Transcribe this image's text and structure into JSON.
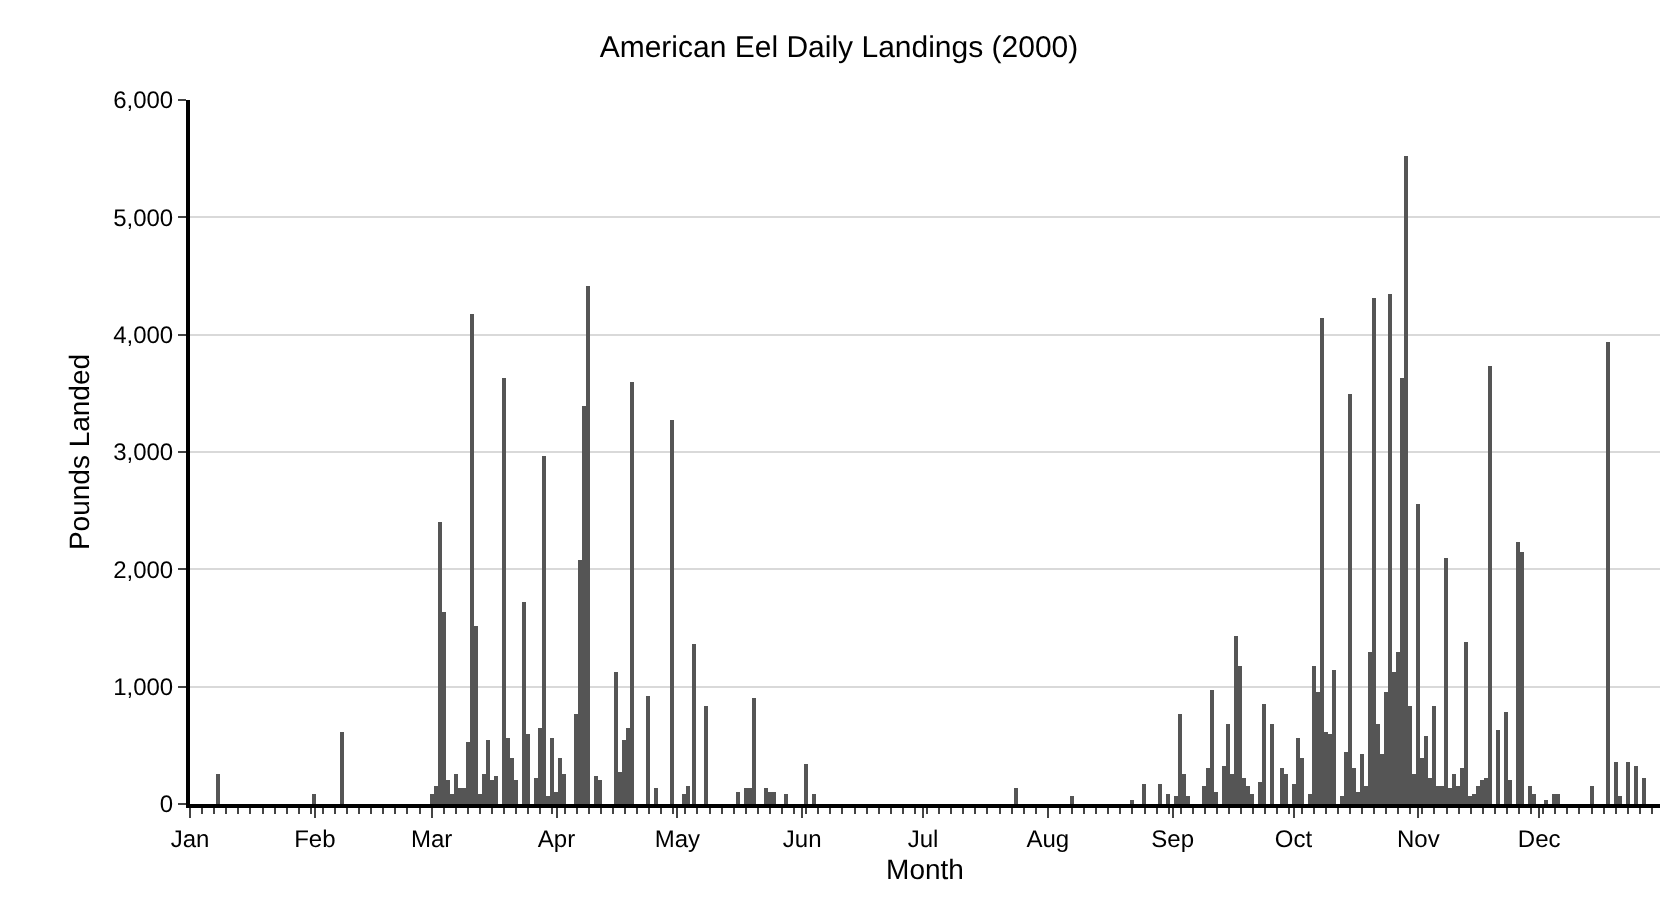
{
  "chart_data": {
    "type": "bar",
    "title": "American Eel Daily Landings (2000)",
    "xlabel": "Month",
    "ylabel": "Pounds Landed",
    "x": [
      "2000-01-08",
      "2000-02-01",
      "2000-02-08",
      "2000-03-01",
      "2000-03-02",
      "2000-03-03",
      "2000-03-04",
      "2000-03-05",
      "2000-03-06",
      "2000-03-07",
      "2000-03-08",
      "2000-03-09",
      "2000-03-10",
      "2000-03-11",
      "2000-03-12",
      "2000-03-13",
      "2000-03-14",
      "2000-03-15",
      "2000-03-16",
      "2000-03-17",
      "2000-03-19",
      "2000-03-20",
      "2000-03-21",
      "2000-03-22",
      "2000-03-24",
      "2000-03-25",
      "2000-03-27",
      "2000-03-28",
      "2000-03-29",
      "2000-03-30",
      "2000-03-31",
      "2000-04-01",
      "2000-04-02",
      "2000-04-03",
      "2000-04-06",
      "2000-04-07",
      "2000-04-08",
      "2000-04-09",
      "2000-04-11",
      "2000-04-12",
      "2000-04-16",
      "2000-04-17",
      "2000-04-18",
      "2000-04-19",
      "2000-04-20",
      "2000-04-24",
      "2000-04-26",
      "2000-04-30",
      "2000-05-03",
      "2000-05-04",
      "2000-05-05",
      "2000-05-08",
      "2000-05-16",
      "2000-05-18",
      "2000-05-19",
      "2000-05-20",
      "2000-05-23",
      "2000-05-24",
      "2000-05-25",
      "2000-05-28",
      "2000-06-02",
      "2000-06-04",
      "2000-07-24",
      "2000-08-07",
      "2000-08-22",
      "2000-08-25",
      "2000-08-29",
      "2000-08-31",
      "2000-09-02",
      "2000-09-03",
      "2000-09-04",
      "2000-09-05",
      "2000-09-09",
      "2000-09-10",
      "2000-09-11",
      "2000-09-12",
      "2000-09-14",
      "2000-09-15",
      "2000-09-16",
      "2000-09-17",
      "2000-09-18",
      "2000-09-19",
      "2000-09-20",
      "2000-09-21",
      "2000-09-23",
      "2000-09-24",
      "2000-09-26",
      "2000-09-28",
      "2000-09-29",
      "2000-10-01",
      "2000-10-02",
      "2000-10-03",
      "2000-10-05",
      "2000-10-06",
      "2000-10-07",
      "2000-10-08",
      "2000-10-09",
      "2000-10-10",
      "2000-10-11",
      "2000-10-13",
      "2000-10-14",
      "2000-10-15",
      "2000-10-16",
      "2000-10-17",
      "2000-10-18",
      "2000-10-19",
      "2000-10-20",
      "2000-10-21",
      "2000-10-22",
      "2000-10-23",
      "2000-10-24",
      "2000-10-25",
      "2000-10-26",
      "2000-10-27",
      "2000-10-28",
      "2000-10-29",
      "2000-10-30",
      "2000-10-31",
      "2000-11-01",
      "2000-11-02",
      "2000-11-03",
      "2000-11-04",
      "2000-11-05",
      "2000-11-06",
      "2000-11-07",
      "2000-11-08",
      "2000-11-09",
      "2000-11-10",
      "2000-11-11",
      "2000-11-12",
      "2000-11-13",
      "2000-11-14",
      "2000-11-15",
      "2000-11-16",
      "2000-11-17",
      "2000-11-18",
      "2000-11-19",
      "2000-11-21",
      "2000-11-23",
      "2000-11-24",
      "2000-11-26",
      "2000-11-27",
      "2000-11-29",
      "2000-11-30",
      "2000-12-03",
      "2000-12-05",
      "2000-12-06",
      "2000-12-14",
      "2000-12-18",
      "2000-12-20",
      "2000-12-21",
      "2000-12-23",
      "2000-12-25",
      "2000-12-27"
    ],
    "values": [
      260,
      80,
      610,
      90,
      160,
      2400,
      1640,
      200,
      90,
      250,
      130,
      140,
      520,
      4170,
      1510,
      80,
      260,
      550,
      210,
      240,
      3630,
      560,
      390,
      200,
      1720,
      590,
      230,
      640,
      2970,
      70,
      560,
      100,
      400,
      260,
      760,
      2080,
      3400,
      4410,
      240,
      200,
      1130,
      270,
      550,
      640,
      3600,
      920,
      140,
      3270,
      90,
      160,
      1370,
      830,
      100,
      140,
      140,
      900,
      140,
      110,
      110,
      80,
      340,
      90,
      130,
      60,
      40,
      170,
      170,
      90,
      60,
      760,
      250,
      70,
      150,
      310,
      970,
      110,
      320,
      680,
      260,
      1430,
      1170,
      220,
      160,
      80,
      190,
      860,
      680,
      300,
      260,
      170,
      560,
      390,
      80,
      1180,
      960,
      4150,
      620,
      590,
      1140,
      60,
      450,
      3500,
      310,
      110,
      420,
      150,
      1300,
      4320,
      680,
      420,
      950,
      4350,
      1120,
      1300,
      3630,
      5530,
      840,
      260,
      2550,
      390,
      580,
      220,
      830,
      150,
      160,
      2090,
      140,
      250,
      150,
      310,
      1380,
      70,
      90,
      160,
      210,
      220,
      3730,
      630,
      790,
      210,
      2230,
      2150,
      160,
      90,
      40,
      90,
      80,
      150,
      3940,
      350,
      70,
      350,
      320,
      220
    ],
    "color": "#555555",
    "xlim": [
      "2000-01-01",
      "2000-12-31"
    ],
    "xticks": [
      {
        "value": "2000-01-01",
        "label": "Jan"
      },
      {
        "value": "2000-02-01",
        "label": "Feb"
      },
      {
        "value": "2000-03-01",
        "label": "Mar"
      },
      {
        "value": "2000-04-01",
        "label": "Apr"
      },
      {
        "value": "2000-05-01",
        "label": "May"
      },
      {
        "value": "2000-06-01",
        "label": "Jun"
      },
      {
        "value": "2000-07-01",
        "label": "Jul"
      },
      {
        "value": "2000-08-01",
        "label": "Aug"
      },
      {
        "value": "2000-09-01",
        "label": "Sep"
      },
      {
        "value": "2000-10-01",
        "label": "Oct"
      },
      {
        "value": "2000-11-01",
        "label": "Nov"
      },
      {
        "value": "2000-12-01",
        "label": "Dec"
      }
    ],
    "ylim": [
      0,
      6000
    ],
    "yticks": [
      {
        "value": 0,
        "label": "0"
      },
      {
        "value": 1000,
        "label": "1,000"
      },
      {
        "value": 2000,
        "label": "2,000"
      },
      {
        "value": 3000,
        "label": "3,000"
      },
      {
        "value": 4000,
        "label": "4,000"
      },
      {
        "value": 5000,
        "label": "5,000"
      },
      {
        "value": 6000,
        "label": "6,000"
      }
    ],
    "grid": "y"
  }
}
